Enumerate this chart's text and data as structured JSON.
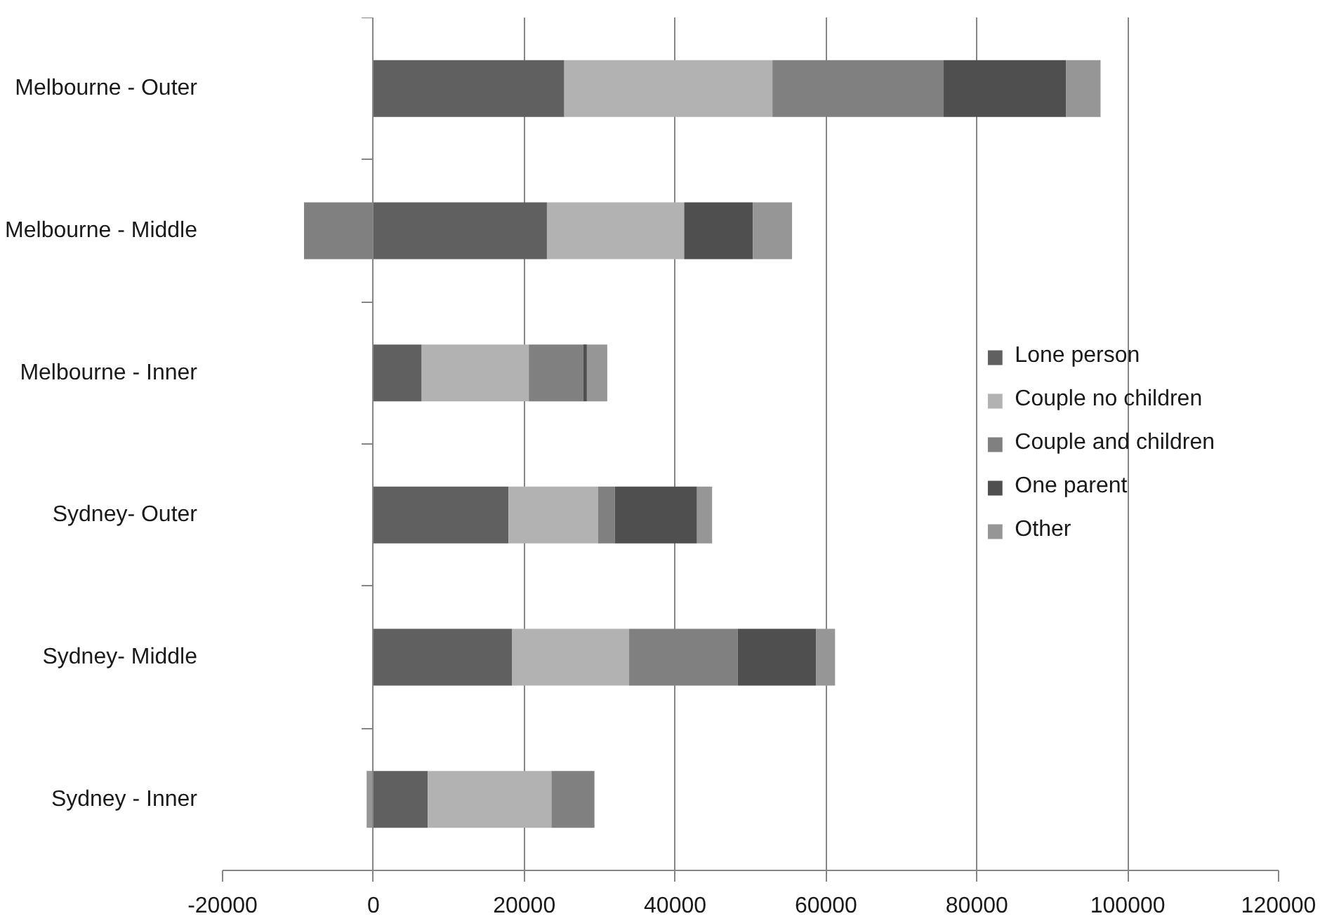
{
  "chart_data": {
    "type": "bar",
    "orientation": "horizontal",
    "stacked": true,
    "categories": [
      "Melbourne - Outer",
      "Melbourne - Middle",
      "Melbourne - Inner",
      "Sydney- Outer",
      "Sydney- Middle",
      "Sydney - Inner"
    ],
    "series": [
      {
        "name": "Lone person",
        "color": "#606060",
        "values": [
          25300,
          23000,
          6400,
          17900,
          18400,
          7200
        ]
      },
      {
        "name": "Couple no children",
        "color": "#b2b2b2",
        "values": [
          27600,
          18200,
          14200,
          11900,
          15500,
          16400
        ]
      },
      {
        "name": "Couple and children",
        "color": "#808080",
        "values": [
          22700,
          -9200,
          7200,
          2200,
          14400,
          5700
        ]
      },
      {
        "name": "One parent",
        "color": "#4f4f4f",
        "values": [
          16200,
          9100,
          500,
          10900,
          10400,
          null
        ]
      },
      {
        "name": "Other",
        "color": "#969696",
        "values": [
          4600,
          5200,
          2700,
          2000,
          2500,
          -900
        ]
      }
    ],
    "xlim": [
      -20000,
      120000
    ],
    "xticks": [
      -20000,
      0,
      20000,
      40000,
      60000,
      80000,
      100000,
      120000
    ],
    "grid": "x",
    "legend": "right"
  }
}
